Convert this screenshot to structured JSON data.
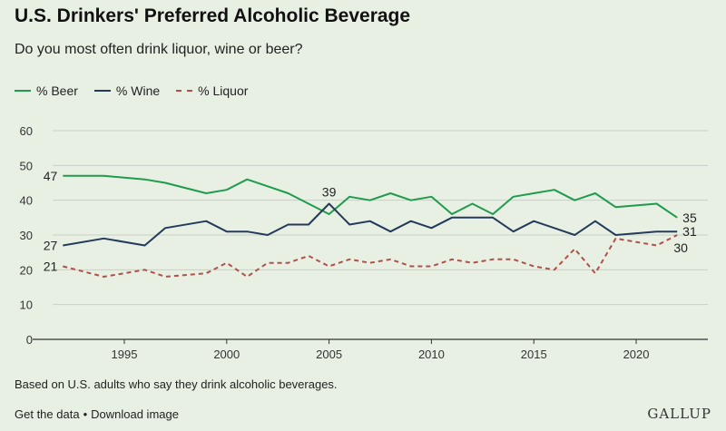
{
  "header": {
    "title": "U.S. Drinkers' Preferred Alcoholic Beverage",
    "subtitle": "Do you most often drink liquor, wine or beer?"
  },
  "legend": [
    {
      "label": "% Beer",
      "color": "#1f9b4d",
      "dashed": false
    },
    {
      "label": "% Wine",
      "color": "#233a5c",
      "dashed": false
    },
    {
      "label": "% Liquor",
      "color": "#b0504a",
      "dashed": true
    }
  ],
  "note": "Based on U.S. adults who say they drink alcoholic beverages.",
  "footer": {
    "get_data": "Get the data",
    "separator": "•",
    "download": "Download image",
    "brand": "GALLUP"
  },
  "chart_data": {
    "type": "line",
    "title": "U.S. Drinkers' Preferred Alcoholic Beverage",
    "subtitle": "Do you most often drink liquor, wine or beer?",
    "xlabel": "",
    "ylabel": "",
    "xlim": [
      1991.5,
      2023.5
    ],
    "ylim": [
      0,
      60
    ],
    "x_ticks": [
      1995,
      2000,
      2005,
      2010,
      2015,
      2020
    ],
    "y_ticks": [
      0,
      10,
      20,
      30,
      40,
      50,
      60
    ],
    "grid": true,
    "x": [
      1992,
      1994,
      1996,
      1997,
      1999,
      2000,
      2001,
      2002,
      2003,
      2004,
      2005,
      2006,
      2007,
      2008,
      2009,
      2010,
      2011,
      2012,
      2013,
      2014,
      2015,
      2016,
      2017,
      2018,
      2019,
      2020,
      2021,
      2022
    ],
    "series": [
      {
        "name": "% Beer",
        "color": "#1f9b4d",
        "dashed": false,
        "values": [
          47,
          47,
          46,
          45,
          42,
          43,
          46,
          44,
          42,
          39,
          36,
          41,
          40,
          42,
          40,
          41,
          36,
          39,
          36,
          41,
          42,
          43,
          40,
          42,
          38,
          38.5,
          39,
          35
        ]
      },
      {
        "name": "% Wine",
        "color": "#233a5c",
        "dashed": false,
        "values": [
          27,
          29,
          27,
          32,
          34,
          31,
          31,
          30,
          33,
          33,
          39,
          33,
          34,
          31,
          34,
          32,
          35,
          35,
          35,
          31,
          34,
          32,
          30,
          34,
          30,
          30.5,
          31,
          31
        ]
      },
      {
        "name": "% Liquor",
        "color": "#b0504a",
        "dashed": true,
        "values": [
          21,
          18,
          20,
          18,
          19,
          22,
          18,
          22,
          22,
          24,
          21,
          23,
          22,
          23,
          21,
          21,
          23,
          22,
          23,
          23,
          21,
          20,
          26,
          19,
          29,
          28,
          27,
          30
        ]
      }
    ],
    "annotations": [
      {
        "text": "47",
        "x": 1992,
        "y": 47,
        "series": "% Beer",
        "position": "left"
      },
      {
        "text": "27",
        "x": 1992,
        "y": 27,
        "series": "% Wine",
        "position": "left"
      },
      {
        "text": "21",
        "x": 1992,
        "y": 21,
        "series": "% Liquor",
        "position": "left"
      },
      {
        "text": "39",
        "x": 2005,
        "y": 39,
        "series": "% Wine",
        "position": "above"
      },
      {
        "text": "35",
        "x": 2022,
        "y": 35,
        "series": "% Beer",
        "position": "right"
      },
      {
        "text": "31",
        "x": 2022,
        "y": 31,
        "series": "% Wine",
        "position": "right"
      },
      {
        "text": "30",
        "x": 2022,
        "y": 30,
        "series": "% Liquor",
        "position": "below-right"
      }
    ]
  }
}
